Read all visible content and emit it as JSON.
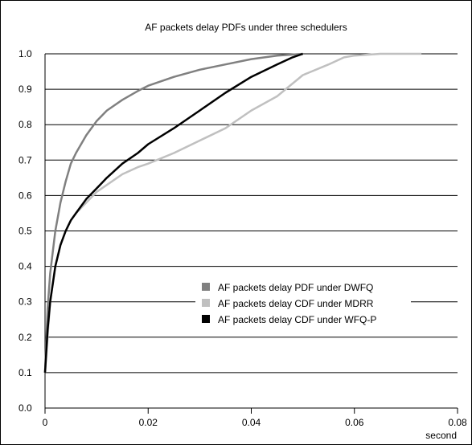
{
  "chart_data": {
    "type": "line",
    "title": "AF packets delay PDFs under three schedulers",
    "xlabel": "second",
    "ylabel": "",
    "xlim": [
      0,
      0.08
    ],
    "ylim": [
      0,
      1.0
    ],
    "x_ticks": [
      "0",
      "0.02",
      "0.04",
      "0.06",
      "0.08"
    ],
    "y_ticks": [
      "0.0",
      "0.1",
      "0.2",
      "0.3",
      "0.4",
      "0.5",
      "0.6",
      "0.7",
      "0.8",
      "0.9",
      "1.0"
    ],
    "grid": "horizontal",
    "legend_position": "lower-right",
    "series": [
      {
        "name": "AF packets delay PDF under DWFQ",
        "color": "#808080",
        "points": [
          [
            0,
            0.1
          ],
          [
            0.0005,
            0.28
          ],
          [
            0.001,
            0.38
          ],
          [
            0.002,
            0.5
          ],
          [
            0.003,
            0.58
          ],
          [
            0.004,
            0.64
          ],
          [
            0.005,
            0.69
          ],
          [
            0.006,
            0.72
          ],
          [
            0.008,
            0.77
          ],
          [
            0.01,
            0.81
          ],
          [
            0.012,
            0.84
          ],
          [
            0.015,
            0.87
          ],
          [
            0.018,
            0.895
          ],
          [
            0.02,
            0.91
          ],
          [
            0.025,
            0.935
          ],
          [
            0.03,
            0.955
          ],
          [
            0.035,
            0.97
          ],
          [
            0.04,
            0.985
          ],
          [
            0.045,
            0.995
          ],
          [
            0.05,
            1.0
          ]
        ]
      },
      {
        "name": "AF packets delay CDF under MDRR",
        "color": "#c0c0c0",
        "points": [
          [
            0,
            0.1
          ],
          [
            0.0005,
            0.2
          ],
          [
            0.001,
            0.3
          ],
          [
            0.002,
            0.4
          ],
          [
            0.003,
            0.46
          ],
          [
            0.004,
            0.5
          ],
          [
            0.005,
            0.53
          ],
          [
            0.006,
            0.55
          ],
          [
            0.008,
            0.58
          ],
          [
            0.01,
            0.61
          ],
          [
            0.012,
            0.63
          ],
          [
            0.015,
            0.66
          ],
          [
            0.018,
            0.68
          ],
          [
            0.02,
            0.69
          ],
          [
            0.025,
            0.72
          ],
          [
            0.03,
            0.755
          ],
          [
            0.035,
            0.79
          ],
          [
            0.04,
            0.84
          ],
          [
            0.045,
            0.88
          ],
          [
            0.05,
            0.94
          ],
          [
            0.055,
            0.97
          ],
          [
            0.058,
            0.99
          ],
          [
            0.06,
            0.995
          ],
          [
            0.065,
            1.0
          ],
          [
            0.073,
            1.0
          ]
        ]
      },
      {
        "name": "AF packets delay CDF under WFQ-P",
        "color": "#000000",
        "points": [
          [
            0,
            0.1
          ],
          [
            0.0005,
            0.22
          ],
          [
            0.001,
            0.3
          ],
          [
            0.002,
            0.4
          ],
          [
            0.003,
            0.46
          ],
          [
            0.004,
            0.5
          ],
          [
            0.005,
            0.53
          ],
          [
            0.006,
            0.55
          ],
          [
            0.008,
            0.59
          ],
          [
            0.01,
            0.62
          ],
          [
            0.012,
            0.65
          ],
          [
            0.015,
            0.69
          ],
          [
            0.018,
            0.72
          ],
          [
            0.02,
            0.745
          ],
          [
            0.025,
            0.79
          ],
          [
            0.03,
            0.84
          ],
          [
            0.035,
            0.89
          ],
          [
            0.04,
            0.935
          ],
          [
            0.045,
            0.97
          ],
          [
            0.048,
            0.99
          ],
          [
            0.05,
            1.0
          ]
        ]
      }
    ]
  }
}
